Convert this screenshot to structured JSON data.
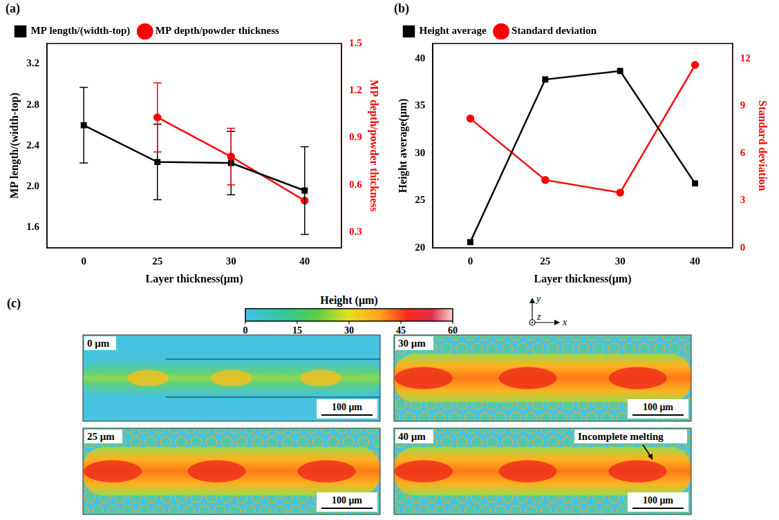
{
  "chart_data": [
    {
      "panel_label": "(a)",
      "type": "line",
      "categories": [
        "0",
        "25",
        "30",
        "40"
      ],
      "x_label": "Layer thickness(μm)",
      "y_label": "MP length/(width-top)",
      "y2_label": "MP depth/powder thickness",
      "ylim": [
        1.4,
        3.4
      ],
      "yticks": [
        1.6,
        {
          "value": 2,
          "label": "2.0"
        },
        2.4,
        2.8,
        3.2
      ],
      "y2lim": [
        0.2,
        1.5
      ],
      "y2ticks": [
        0.3,
        0.6,
        0.9,
        1.2,
        1.5
      ],
      "grid": false,
      "legend": "top left",
      "series": [
        {
          "name": "MP length/(width-top)",
          "color": "#000000",
          "marker": "square",
          "values": [
            2.6,
            2.24,
            2.23,
            1.96
          ],
          "errors": [
            0.37,
            0.37,
            0.31,
            0.43
          ]
        },
        {
          "name": "MP depth/powder thickness",
          "color": "#ff0000",
          "marker": "circle",
          "axis": "y2",
          "values": [
            null,
            1.03,
            0.78,
            0.5
          ],
          "errors": [
            null,
            0.22,
            0.18,
            null
          ]
        }
      ]
    },
    {
      "panel_label": "(b)",
      "type": "line",
      "categories": [
        "0",
        "25",
        "30",
        "40"
      ],
      "x_label": "Layer thickness(μm)",
      "y_label": "Height average(μm)",
      "y2_label": "Standard deviation",
      "ylim": [
        20,
        41.6
      ],
      "yticks": [
        20,
        25,
        30,
        35,
        40
      ],
      "y2lim": [
        0,
        12.96
      ],
      "y2ticks": [
        0,
        3,
        6,
        9,
        12
      ],
      "grid": false,
      "legend": "top left",
      "series": [
        {
          "name": "Height average",
          "color": "#000000",
          "marker": "square",
          "values": [
            20.6,
            37.8,
            38.7,
            26.8
          ]
        },
        {
          "name": "Standard deviation",
          "color": "#ff0000",
          "marker": "circle",
          "axis": "y2",
          "values": [
            8.2,
            4.3,
            3.5,
            11.6
          ]
        }
      ]
    }
  ],
  "height_maps": {
    "panel_label": "(c)",
    "title": "Height (μm)",
    "colorbar": {
      "range": [
        0,
        60
      ],
      "ticks": [
        0,
        15,
        30,
        45,
        60
      ]
    },
    "axes": [
      "y",
      "z",
      "x"
    ],
    "maps": [
      {
        "label": "0 μm",
        "scale_bar": "100 μm"
      },
      {
        "label": "30 μm",
        "scale_bar": "100 μm"
      },
      {
        "label": "25 μm",
        "scale_bar": "100 μm"
      },
      {
        "label": "40 μm",
        "scale_bar": "100 μm",
        "annotation": "Incomplete melting"
      }
    ]
  }
}
